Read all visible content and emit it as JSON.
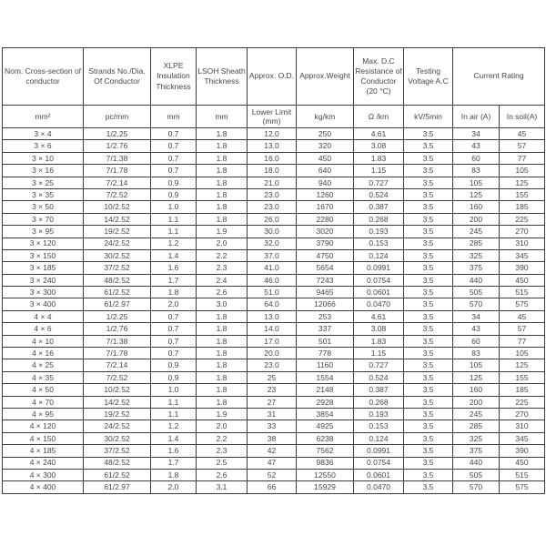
{
  "table": {
    "columns": [
      {
        "title": "Nom. Cross-section of conductor",
        "unit": "mm²"
      },
      {
        "title": "Strands No./Dia. Of Conductor",
        "unit": "pc/mm"
      },
      {
        "title": "XLPE Insulation Thickness",
        "unit": "mm"
      },
      {
        "title": "LSOH Sheath Thickness",
        "unit": "mm"
      },
      {
        "title": "Approx. O.D.",
        "unit": "Lower Limit (mm)"
      },
      {
        "title": "Approx.Weight",
        "unit": "kg/km"
      },
      {
        "title": "Max. D.C Resistance of Conductor (20 °C)",
        "unit": "Ω /km"
      },
      {
        "title": "Testing Voltage A.C",
        "unit": "kV/5min"
      }
    ],
    "current_rating": {
      "title": "Current Rating",
      "units": [
        "In air (A)",
        "In soil(A)"
      ]
    },
    "rows": [
      [
        "3 × 4",
        "1/2.25",
        "0.7",
        "1.8",
        "12.0",
        "250",
        "4.61",
        "3.5",
        "34",
        "45"
      ],
      [
        "3 × 6",
        "1/2.76",
        "0.7",
        "1.8",
        "13.0",
        "320",
        "3.08",
        "3.5",
        "43",
        "57"
      ],
      [
        "3 × 10",
        "7/1.38",
        "0.7",
        "1.8",
        "16.0",
        "450",
        "1.83",
        "3.5",
        "60",
        "77"
      ],
      [
        "3 × 16",
        "7/1.78",
        "0.7",
        "1.8",
        "18.0",
        "640",
        "1.15",
        "3.5",
        "83",
        "105"
      ],
      [
        "3 × 25",
        "7/2.14",
        "0.9",
        "1.8",
        "21.0",
        "940",
        "0.727",
        "3.5",
        "105",
        "125"
      ],
      [
        "3 × 35",
        "7/2.52",
        "0.9",
        "1.8",
        "23.0",
        "1260",
        "0.524",
        "3.5",
        "125",
        "155"
      ],
      [
        "3 × 50",
        "10/2.52",
        "1.0",
        "1.8",
        "23.0",
        "1670",
        "0.387",
        "3.5",
        "160",
        "185"
      ],
      [
        "3 × 70",
        "14/2.52",
        "1.1",
        "1.8",
        "26.0",
        "2280",
        "0.268",
        "3.5",
        "200",
        "225"
      ],
      [
        "3 × 95",
        "19/2.52",
        "1.1",
        "1.9",
        "30.0",
        "3020",
        "0.193",
        "3.5",
        "245",
        "270"
      ],
      [
        "3 × 120",
        "24/2.52",
        "1.2",
        "2.0",
        "32.0",
        "3790",
        "0.153",
        "3.5",
        "285",
        "310"
      ],
      [
        "3 × 150",
        "30/2.52",
        "1.4",
        "2.2",
        "37.0",
        "4750",
        "0.124",
        "3.5",
        "325",
        "345"
      ],
      [
        "3 × 185",
        "37/2.52",
        "1.6",
        "2.3",
        "41.0",
        "5654",
        "0.0991",
        "3.5",
        "375",
        "390"
      ],
      [
        "3 × 240",
        "48/2.52",
        "1.7",
        "2.4",
        "46.0",
        "7243",
        "0.0754",
        "3.5",
        "440",
        "450"
      ],
      [
        "3 × 300",
        "61/2.52",
        "1.8",
        "2.6",
        "51.0",
        "9465",
        "0.0601",
        "3.5",
        "505",
        "515"
      ],
      [
        "3 × 400",
        "61/2.97",
        "2.0",
        "3.0",
        "64.0",
        "12066",
        "0.0470",
        "3.5",
        "570",
        "575"
      ],
      [
        "4 × 4",
        "1/2.25",
        "0.7",
        "1.8",
        "13.0",
        "253",
        "4.61",
        "3.5",
        "34",
        "45"
      ],
      [
        "4 × 6",
        "1/2.76",
        "0.7",
        "1.8",
        "14.0",
        "337",
        "3.08",
        "3.5",
        "43",
        "57"
      ],
      [
        "4 × 10",
        "7/1.38",
        "0.7",
        "1.8",
        "17.0",
        "501",
        "1.83",
        "3.5",
        "60",
        "77"
      ],
      [
        "4 × 16",
        "7/1.78",
        "0.7",
        "1.8",
        "20.0",
        "778",
        "1.15",
        "3.5",
        "83",
        "105"
      ],
      [
        "4 × 25",
        "7/2.14",
        "0.9",
        "1.8",
        "23.0",
        "1160",
        "0.727",
        "3.5",
        "105",
        "125"
      ],
      [
        "4 × 35",
        "7/2.52",
        "0.9",
        "1.8",
        "25",
        "1554",
        "0.524",
        "3.5",
        "125",
        "155"
      ],
      [
        "4 × 50",
        "10/2.52",
        "1.0",
        "1.8",
        "23",
        "2148",
        "0.387",
        "3.5",
        "160",
        "185"
      ],
      [
        "4 × 70",
        "14/2.52",
        "1.1",
        "1.8",
        "27",
        "2928",
        "0.268",
        "3.5",
        "200",
        "225"
      ],
      [
        "4 × 95",
        "19/2.52",
        "1.1",
        "1.9",
        "31",
        "3854",
        "0.193",
        "3.5",
        "245",
        "270"
      ],
      [
        "4 × 120",
        "24/2.52",
        "1.2",
        "2.0",
        "33",
        "4925",
        "0.153",
        "3.5",
        "285",
        "310"
      ],
      [
        "4 × 150",
        "30/2.52",
        "1.4",
        "2.2",
        "38",
        "6238",
        "0.124",
        "3.5",
        "325",
        "345"
      ],
      [
        "4 × 185",
        "37/2.52",
        "1.6",
        "2.3",
        "42",
        "7562",
        "0.0991",
        "3.5",
        "375",
        "390"
      ],
      [
        "4 × 240",
        "48/2.52",
        "1.7",
        "2.5",
        "47",
        "9836",
        "0.0754",
        "3.5",
        "440",
        "450"
      ],
      [
        "4 × 300",
        "61/2.52",
        "1.8",
        "2.6",
        "52",
        "12550",
        "0.0601",
        "3.5",
        "505",
        "515"
      ],
      [
        "4 × 400",
        "61/2.97",
        "2.0",
        "3.1",
        "66",
        "15929",
        "0.0470",
        "3.5",
        "570",
        "575"
      ]
    ]
  }
}
